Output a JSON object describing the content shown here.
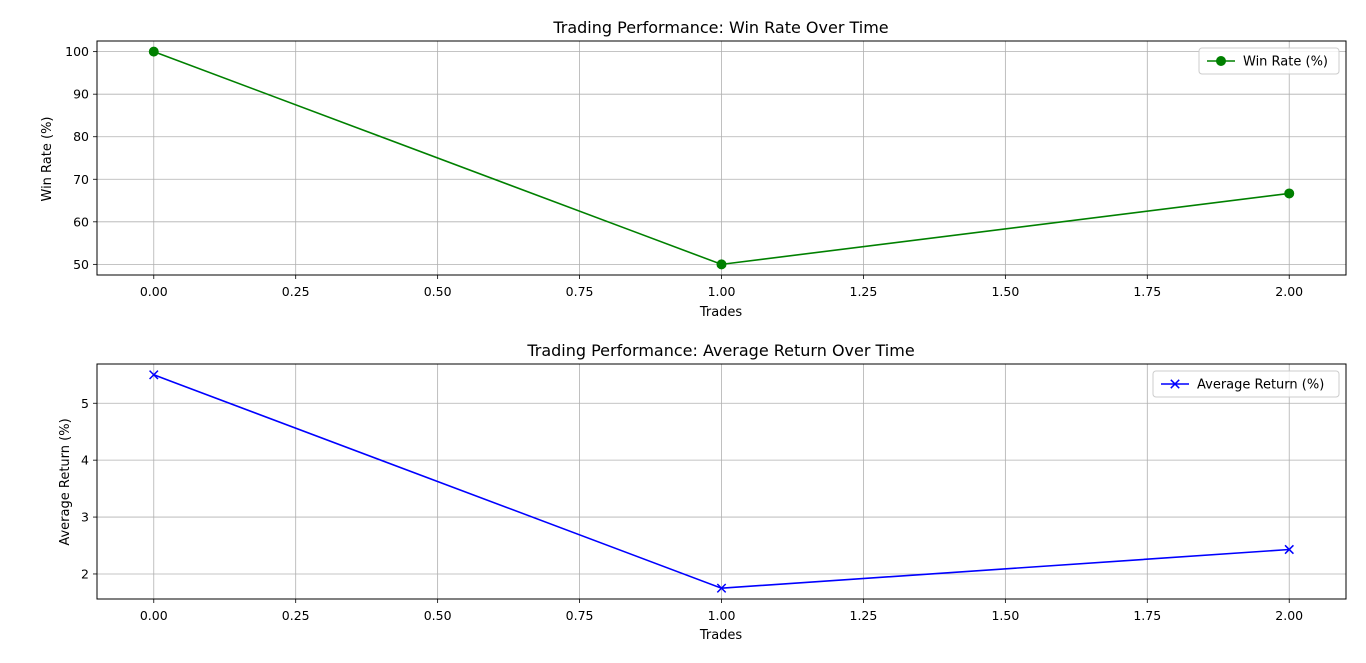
{
  "chart_data": [
    {
      "type": "line",
      "title": "Trading Performance: Win Rate Over Time",
      "xlabel": "Trades",
      "ylabel": "Win Rate (%)",
      "x": [
        0,
        1,
        2
      ],
      "series": [
        {
          "name": "Win Rate (%)",
          "values": [
            100,
            50,
            66.67
          ],
          "color": "#008000",
          "marker": "circle"
        }
      ],
      "xlim": [
        -0.1,
        2.1
      ],
      "ylim": [
        47.5,
        102.5
      ],
      "xticks": [
        0,
        0.25,
        0.5,
        0.75,
        1,
        1.25,
        1.5,
        1.75,
        2
      ],
      "xtick_labels": [
        "0.00",
        "0.25",
        "0.50",
        "0.75",
        "1.00",
        "1.25",
        "1.50",
        "1.75",
        "2.00"
      ],
      "yticks": [
        50,
        60,
        70,
        80,
        90,
        100
      ],
      "ytick_labels": [
        "50",
        "60",
        "70",
        "80",
        "90",
        "100"
      ],
      "grid": true,
      "legend": "top-right"
    },
    {
      "type": "line",
      "title": "Trading Performance: Average Return Over Time",
      "xlabel": "Trades",
      "ylabel": "Average Return (%)",
      "x": [
        0,
        1,
        2
      ],
      "series": [
        {
          "name": "Average Return (%)",
          "values": [
            5.5,
            1.75,
            2.43
          ],
          "color": "#0000ff",
          "marker": "x"
        }
      ],
      "xlim": [
        -0.1,
        2.1
      ],
      "ylim": [
        1.56,
        5.69
      ],
      "xticks": [
        0,
        0.25,
        0.5,
        0.75,
        1,
        1.25,
        1.5,
        1.75,
        2
      ],
      "xtick_labels": [
        "0.00",
        "0.25",
        "0.50",
        "0.75",
        "1.00",
        "1.25",
        "1.50",
        "1.75",
        "2.00"
      ],
      "yticks": [
        2,
        3,
        4,
        5
      ],
      "ytick_labels": [
        "2",
        "3",
        "4",
        "5"
      ],
      "grid": true,
      "legend": "top-right"
    }
  ]
}
